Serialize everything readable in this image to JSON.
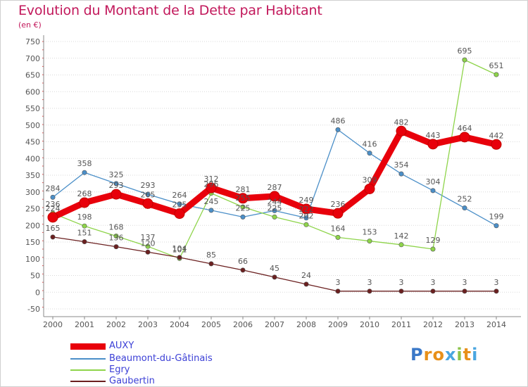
{
  "title": "Evolution du Montant de la Dette par Habitant",
  "subtitle": "(en €)",
  "logo_text": "Proxiti",
  "colors": {
    "title": "#c2185b",
    "axis_text": "#555555",
    "grid": "#d9d9d9",
    "legend_text": "#3b3fd6"
  },
  "chart_data": {
    "type": "line",
    "title": "Evolution du Montant de la Dette par Habitant",
    "subtitle": "(en €)",
    "x": [
      "2000",
      "2001",
      "2002",
      "2003",
      "2004",
      "2005",
      "2006",
      "2007",
      "2008",
      "2009",
      "2010",
      "2011",
      "2012",
      "2013",
      "2014"
    ],
    "yticks": [
      750,
      700,
      650,
      600,
      550,
      500,
      450,
      400,
      350,
      300,
      250,
      200,
      150,
      100,
      50,
      0,
      -50
    ],
    "ylim": [
      -50,
      750
    ],
    "grid": "horizontal",
    "legend_position": "bottom-left",
    "series": [
      {
        "name": "AUXY",
        "color": "#e8000b",
        "emphasis": true,
        "values": [
          224,
          268,
          293,
          265,
          235,
          312,
          281,
          287,
          249,
          236,
          309,
          482,
          443,
          464,
          442
        ]
      },
      {
        "name": "Beaumont-du-Gâtinais",
        "color": "#4b8fc8",
        "values": [
          284,
          358,
          325,
          293,
          264,
          245,
          225,
          244,
          222,
          486,
          416,
          354,
          304,
          252,
          199
        ]
      },
      {
        "name": "Egry",
        "color": "#8ed44a",
        "values": [
          236,
          198,
          168,
          137,
          101,
          296,
          255,
          225,
          202,
          164,
          153,
          142,
          129,
          695,
          651
        ]
      },
      {
        "name": "Gaubertin",
        "color": "#6b2020",
        "values": [
          165,
          151,
          136,
          120,
          104,
          85,
          66,
          45,
          24,
          3,
          3,
          3,
          3,
          3,
          3
        ]
      }
    ]
  }
}
